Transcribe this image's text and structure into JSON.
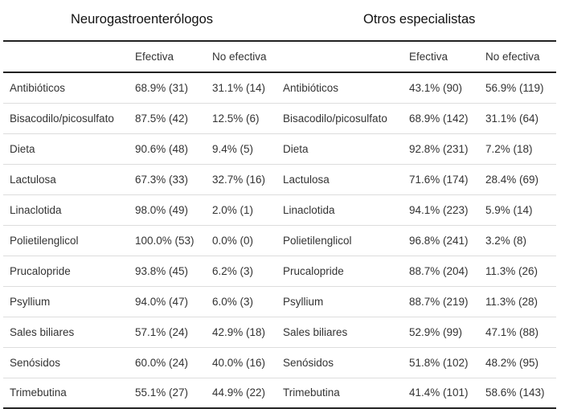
{
  "groups": {
    "neuro": "Neurogastroenterólogos",
    "otros": "Otros especialistas"
  },
  "columns": {
    "neuro_efectiva": "Efectiva",
    "neuro_no_efectiva": "No efectiva",
    "otros_efectiva": "Efectiva",
    "otros_no_efectiva": "No efectiva"
  },
  "rows": [
    {
      "neuro_treatment": "Antibióticos",
      "neuro_efectiva": "68.9% (31)",
      "neuro_no_efectiva": "31.1% (14)",
      "otros_treatment": "Antibióticos",
      "otros_efectiva": "43.1% (90)",
      "otros_no_efectiva": "56.9% (119)"
    },
    {
      "neuro_treatment": "Bisacodilo/picosulfato",
      "neuro_efectiva": "87.5% (42)",
      "neuro_no_efectiva": "12.5% (6)",
      "otros_treatment": "Bisacodilo/picosulfato",
      "otros_efectiva": "68.9% (142)",
      "otros_no_efectiva": "31.1% (64)"
    },
    {
      "neuro_treatment": "Dieta",
      "neuro_efectiva": "90.6% (48)",
      "neuro_no_efectiva": "9.4% (5)",
      "otros_treatment": "Dieta",
      "otros_efectiva": "92.8% (231)",
      "otros_no_efectiva": "7.2% (18)"
    },
    {
      "neuro_treatment": "Lactulosa",
      "neuro_efectiva": "67.3% (33)",
      "neuro_no_efectiva": "32.7% (16)",
      "otros_treatment": "Lactulosa",
      "otros_efectiva": "71.6% (174)",
      "otros_no_efectiva": "28.4% (69)"
    },
    {
      "neuro_treatment": "Linaclotida",
      "neuro_efectiva": "98.0% (49)",
      "neuro_no_efectiva": "2.0% (1)",
      "otros_treatment": "Linaclotida",
      "otros_efectiva": "94.1% (223)",
      "otros_no_efectiva": "5.9% (14)"
    },
    {
      "neuro_treatment": "Polietilenglicol",
      "neuro_efectiva": "100.0% (53)",
      "neuro_no_efectiva": "0.0% (0)",
      "otros_treatment": "Polietilenglicol",
      "otros_efectiva": "96.8% (241)",
      "otros_no_efectiva": "3.2% (8)"
    },
    {
      "neuro_treatment": "Prucalopride",
      "neuro_efectiva": "93.8% (45)",
      "neuro_no_efectiva": "6.2% (3)",
      "otros_treatment": "Prucalopride",
      "otros_efectiva": "88.7% (204)",
      "otros_no_efectiva": "11.3% (26)"
    },
    {
      "neuro_treatment": "Psyllium",
      "neuro_efectiva": "94.0% (47)",
      "neuro_no_efectiva": "6.0% (3)",
      "otros_treatment": "Psyllium",
      "otros_efectiva": "88.7% (219)",
      "otros_no_efectiva": "11.3% (28)"
    },
    {
      "neuro_treatment": "Sales biliares",
      "neuro_efectiva": "57.1% (24)",
      "neuro_no_efectiva": "42.9% (18)",
      "otros_treatment": "Sales biliares",
      "otros_efectiva": "52.9% (99)",
      "otros_no_efectiva": "47.1% (88)"
    },
    {
      "neuro_treatment": "Senósidos",
      "neuro_efectiva": "60.0% (24)",
      "neuro_no_efectiva": "40.0% (16)",
      "otros_treatment": "Senósidos",
      "otros_efectiva": "51.8% (102)",
      "otros_no_efectiva": "48.2% (95)"
    },
    {
      "neuro_treatment": "Trimebutina",
      "neuro_efectiva": "55.1% (27)",
      "neuro_no_efectiva": "44.9% (22)",
      "otros_treatment": "Trimebutina",
      "otros_efectiva": "41.4% (101)",
      "otros_no_efectiva": "58.6% (143)"
    }
  ]
}
